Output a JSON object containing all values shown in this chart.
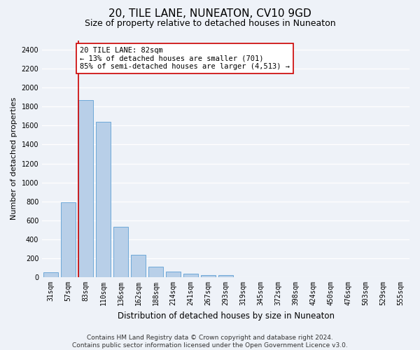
{
  "title": "20, TILE LANE, NUNEATON, CV10 9GD",
  "subtitle": "Size of property relative to detached houses in Nuneaton",
  "xlabel": "Distribution of detached houses by size in Nuneaton",
  "ylabel": "Number of detached properties",
  "bin_labels": [
    "31sqm",
    "57sqm",
    "83sqm",
    "110sqm",
    "136sqm",
    "162sqm",
    "188sqm",
    "214sqm",
    "241sqm",
    "267sqm",
    "293sqm",
    "319sqm",
    "345sqm",
    "372sqm",
    "398sqm",
    "424sqm",
    "450sqm",
    "476sqm",
    "503sqm",
    "529sqm",
    "555sqm"
  ],
  "bar_values": [
    55,
    790,
    1870,
    1640,
    530,
    240,
    110,
    60,
    40,
    25,
    20,
    0,
    0,
    0,
    0,
    0,
    0,
    0,
    0,
    0,
    0
  ],
  "bar_color": "#b8cfe8",
  "bar_edge_color": "#6ea8d8",
  "highlight_bin_index": 2,
  "red_line_color": "#cc0000",
  "annotation_text": "20 TILE LANE: 82sqm\n← 13% of detached houses are smaller (701)\n85% of semi-detached houses are larger (4,513) →",
  "annotation_box_color": "#ffffff",
  "annotation_box_edge": "#cc0000",
  "ylim": [
    0,
    2500
  ],
  "yticks": [
    0,
    200,
    400,
    600,
    800,
    1000,
    1200,
    1400,
    1600,
    1800,
    2000,
    2200,
    2400
  ],
  "footer_line1": "Contains HM Land Registry data © Crown copyright and database right 2024.",
  "footer_line2": "Contains public sector information licensed under the Open Government Licence v3.0.",
  "background_color": "#eef2f8",
  "grid_color": "#ffffff",
  "title_fontsize": 11,
  "subtitle_fontsize": 9,
  "ylabel_fontsize": 8,
  "xlabel_fontsize": 8.5,
  "tick_fontsize": 7,
  "footer_fontsize": 6.5,
  "annotation_fontsize": 7.5
}
